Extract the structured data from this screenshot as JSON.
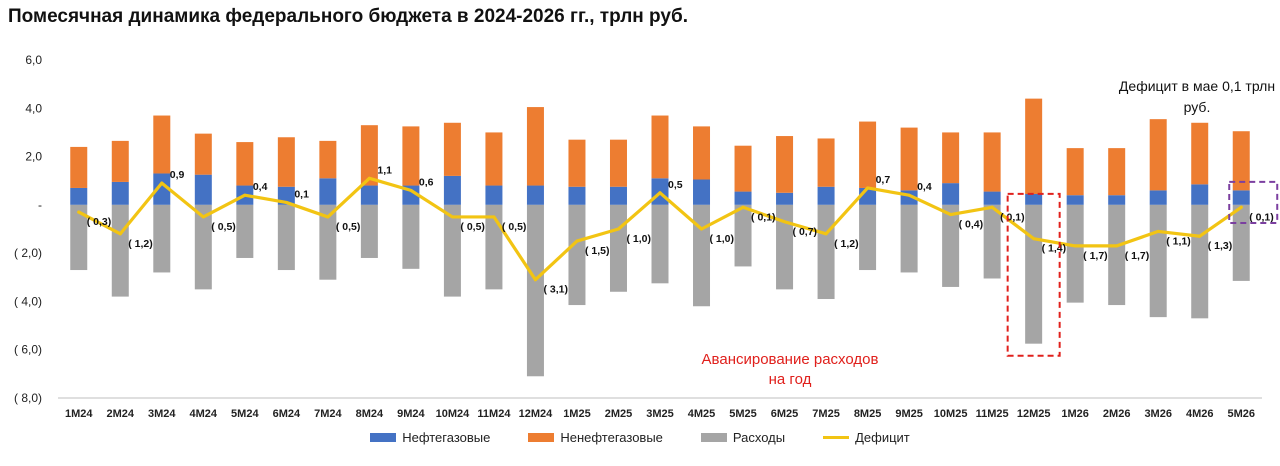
{
  "title": "Помесячная динамика федерального бюджета в 2024-2026 гг., трлн руб.",
  "colors": {
    "oil_gas": "#4472C4",
    "non_oil_gas": "#ED7D31",
    "expenses": "#A5A5A5",
    "deficit": "#F2C413",
    "highlight_red": "#E0201C",
    "highlight_purple": "#7B3FA0"
  },
  "chart_data": {
    "type": "bar",
    "categories": [
      "1M24",
      "2M24",
      "3M24",
      "4M24",
      "5M24",
      "6M24",
      "7M24",
      "8M24",
      "9M24",
      "10M24",
      "11M24",
      "12M24",
      "1M25",
      "2M25",
      "3M25",
      "4M25",
      "5M25",
      "6M25",
      "7M25",
      "8M25",
      "9M25",
      "10M25",
      "11M25",
      "12M25",
      "1M26",
      "2M26",
      "3M26",
      "4M26",
      "5M26"
    ],
    "ylim": [
      -8,
      6
    ],
    "yticks": [
      {
        "value": 6,
        "label": "6,0"
      },
      {
        "value": 4,
        "label": "4,0"
      },
      {
        "value": 2,
        "label": "2,0"
      },
      {
        "value": 0,
        "label": "-"
      },
      {
        "value": -2,
        "label": "( 2,0)"
      },
      {
        "value": -4,
        "label": "( 4,0)"
      },
      {
        "value": -6,
        "label": "( 6,0)"
      },
      {
        "value": -8,
        "label": "( 8,0)"
      }
    ],
    "series": [
      {
        "name": "Нефтегазовые",
        "type": "bar",
        "values": [
          0.7,
          0.95,
          1.3,
          1.25,
          0.8,
          0.75,
          1.1,
          0.8,
          0.8,
          1.2,
          0.8,
          0.8,
          0.75,
          0.75,
          1.1,
          1.05,
          0.55,
          0.5,
          0.75,
          0.7,
          0.6,
          0.9,
          0.55,
          0.45,
          0.4,
          0.4,
          0.6,
          0.85,
          0.6
        ]
      },
      {
        "name": "Ненефтегазовые",
        "type": "bar",
        "values": [
          1.7,
          1.7,
          2.4,
          1.7,
          1.8,
          2.05,
          1.55,
          2.5,
          2.45,
          2.2,
          2.2,
          3.25,
          1.95,
          1.95,
          2.6,
          2.2,
          1.9,
          2.35,
          2.0,
          2.75,
          2.6,
          2.1,
          2.45,
          3.95,
          1.95,
          1.95,
          2.95,
          2.55,
          2.45
        ]
      },
      {
        "name": "Расходы",
        "type": "bar",
        "values": [
          -2.7,
          -3.8,
          -2.8,
          -3.5,
          -2.2,
          -2.7,
          -3.1,
          -2.2,
          -2.65,
          -3.8,
          -3.5,
          -7.1,
          -4.15,
          -3.6,
          -3.25,
          -4.2,
          -2.55,
          -3.5,
          -3.9,
          -2.7,
          -2.8,
          -3.4,
          -3.05,
          -5.75,
          -4.05,
          -4.15,
          -4.65,
          -4.7,
          -3.15
        ]
      },
      {
        "name": "Дефицит",
        "type": "line",
        "values": [
          -0.3,
          -1.2,
          0.9,
          -0.5,
          0.4,
          0.1,
          -0.5,
          1.1,
          0.6,
          -0.5,
          -0.5,
          -3.1,
          -1.5,
          -1.0,
          0.5,
          -1.0,
          -0.1,
          -0.7,
          -1.2,
          0.7,
          0.4,
          -0.4,
          -0.1,
          -1.4,
          -1.7,
          -1.7,
          -1.1,
          -1.3,
          -0.1
        ]
      }
    ],
    "data_labels": [
      "( 0,3)",
      "( 1,2)",
      "0,9",
      "( 0,5)",
      "0,4",
      "0,1",
      "( 0,5)",
      "1,1",
      "0,6",
      "( 0,5)",
      "( 0,5)",
      "( 3,1)",
      "( 1,5)",
      "( 1,0)",
      "0,5",
      "( 1,0)",
      "( 0,1)",
      "( 0,7)",
      "( 1,2)",
      "0,7",
      "0,4",
      "( 0,4)",
      "( 0,1)",
      "( 1,4)",
      "( 1,7)",
      "( 1,7)",
      "( 1,1)",
      "( 1,3)",
      "( 0,1)"
    ],
    "legend_position": "bottom",
    "grid": false
  },
  "legend": {
    "oil_gas": "Нефтегазовые",
    "non_oil_gas": "Ненефтегазовые",
    "expenses": "Расходы",
    "deficit": "Дефицит"
  },
  "annotations": {
    "advance": "Авансирование расходов на год",
    "may_deficit": "Дефицит в мае 0,1 трлн руб."
  }
}
